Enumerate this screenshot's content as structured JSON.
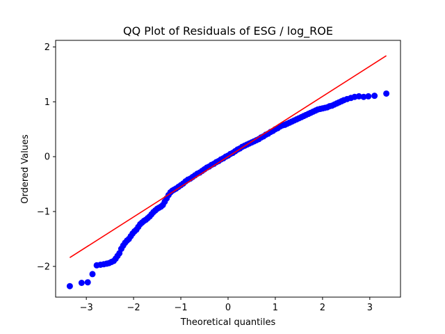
{
  "chart_data": {
    "type": "scatter",
    "title": "QQ Plot of Residuals of ESG / log_ROE",
    "xlabel": "Theoretical quantiles",
    "ylabel": "Ordered Values",
    "xlim": [
      -3.65,
      3.65
    ],
    "ylim": [
      -2.56,
      2.12
    ],
    "xticks": [
      -3,
      -2,
      -1,
      0,
      1,
      2,
      3
    ],
    "yticks": [
      -2,
      -1,
      0,
      1,
      2
    ],
    "xtick_labels": [
      "−3",
      "−2",
      "−1",
      "0",
      "1",
      "2",
      "3"
    ],
    "ytick_labels": [
      "−2",
      "−1",
      "0",
      "1",
      "2"
    ],
    "grid": false,
    "colors": {
      "points": "#0000ff",
      "fit_line": "#ff0000"
    },
    "series": [
      {
        "type": "scatter",
        "points": [
          [
            -3.35,
            -2.36
          ],
          [
            -3.1,
            -2.3
          ],
          [
            -2.97,
            -2.29
          ],
          [
            -2.87,
            -2.14
          ],
          [
            -2.78,
            -1.98
          ],
          [
            -2.7,
            -1.97
          ],
          [
            -2.63,
            -1.96
          ],
          [
            -2.57,
            -1.95
          ],
          [
            -2.52,
            -1.94
          ],
          [
            -2.47,
            -1.92
          ],
          [
            -2.42,
            -1.9
          ],
          [
            -2.38,
            -1.86
          ],
          [
            -2.34,
            -1.81
          ],
          [
            -2.3,
            -1.76
          ],
          [
            -2.26,
            -1.68
          ],
          [
            -2.22,
            -1.62
          ],
          [
            -2.18,
            -1.57
          ],
          [
            -2.14,
            -1.53
          ],
          [
            -2.1,
            -1.5
          ],
          [
            -2.06,
            -1.45
          ],
          [
            -2.02,
            -1.4
          ],
          [
            -1.98,
            -1.36
          ],
          [
            -1.94,
            -1.33
          ],
          [
            -1.9,
            -1.28
          ],
          [
            -1.86,
            -1.23
          ],
          [
            -1.82,
            -1.2
          ],
          [
            -1.78,
            -1.17
          ],
          [
            -1.74,
            -1.15
          ],
          [
            -1.7,
            -1.12
          ],
          [
            -1.66,
            -1.09
          ],
          [
            -1.62,
            -1.05
          ],
          [
            -1.58,
            -1.01
          ],
          [
            -1.54,
            -0.98
          ],
          [
            -1.5,
            -0.95
          ],
          [
            -1.46,
            -0.93
          ],
          [
            -1.42,
            -0.91
          ],
          [
            -1.38,
            -0.88
          ],
          [
            -1.34,
            -0.82
          ],
          [
            -1.3,
            -0.76
          ],
          [
            -1.26,
            -0.7
          ],
          [
            -1.22,
            -0.65
          ],
          [
            -1.18,
            -0.62
          ],
          [
            -1.14,
            -0.6
          ],
          [
            -1.1,
            -0.58
          ],
          [
            -1.05,
            -0.55
          ],
          [
            -1.0,
            -0.52
          ],
          [
            -0.95,
            -0.49
          ],
          [
            -0.9,
            -0.45
          ],
          [
            -0.85,
            -0.42
          ],
          [
            -0.8,
            -0.4
          ],
          [
            -0.75,
            -0.37
          ],
          [
            -0.7,
            -0.34
          ],
          [
            -0.65,
            -0.31
          ],
          [
            -0.6,
            -0.29
          ],
          [
            -0.55,
            -0.26
          ],
          [
            -0.5,
            -0.23
          ],
          [
            -0.45,
            -0.2
          ],
          [
            -0.4,
            -0.18
          ],
          [
            -0.35,
            -0.15
          ],
          [
            -0.3,
            -0.13
          ],
          [
            -0.25,
            -0.1
          ],
          [
            -0.2,
            -0.08
          ],
          [
            -0.15,
            -0.05
          ],
          [
            -0.1,
            -0.03
          ],
          [
            -0.05,
            0.0
          ],
          [
            0.0,
            0.02
          ],
          [
            0.05,
            0.05
          ],
          [
            0.1,
            0.07
          ],
          [
            0.15,
            0.1
          ],
          [
            0.2,
            0.13
          ],
          [
            0.25,
            0.15
          ],
          [
            0.3,
            0.18
          ],
          [
            0.35,
            0.2
          ],
          [
            0.4,
            0.22
          ],
          [
            0.45,
            0.24
          ],
          [
            0.5,
            0.26
          ],
          [
            0.55,
            0.28
          ],
          [
            0.6,
            0.3
          ],
          [
            0.65,
            0.32
          ],
          [
            0.7,
            0.35
          ],
          [
            0.75,
            0.37
          ],
          [
            0.8,
            0.4
          ],
          [
            0.85,
            0.42
          ],
          [
            0.9,
            0.45
          ],
          [
            0.95,
            0.47
          ],
          [
            1.0,
            0.5
          ],
          [
            1.05,
            0.52
          ],
          [
            1.1,
            0.55
          ],
          [
            1.15,
            0.57
          ],
          [
            1.2,
            0.58
          ],
          [
            1.25,
            0.6
          ],
          [
            1.3,
            0.62
          ],
          [
            1.35,
            0.64
          ],
          [
            1.4,
            0.66
          ],
          [
            1.45,
            0.68
          ],
          [
            1.5,
            0.7
          ],
          [
            1.55,
            0.72
          ],
          [
            1.6,
            0.74
          ],
          [
            1.65,
            0.76
          ],
          [
            1.7,
            0.78
          ],
          [
            1.75,
            0.8
          ],
          [
            1.8,
            0.82
          ],
          [
            1.85,
            0.84
          ],
          [
            1.9,
            0.86
          ],
          [
            1.95,
            0.87
          ],
          [
            2.0,
            0.88
          ],
          [
            2.05,
            0.89
          ],
          [
            2.1,
            0.9
          ],
          [
            2.15,
            0.92
          ],
          [
            2.2,
            0.93
          ],
          [
            2.25,
            0.95
          ],
          [
            2.3,
            0.97
          ],
          [
            2.35,
            0.99
          ],
          [
            2.4,
            1.01
          ],
          [
            2.45,
            1.03
          ],
          [
            2.52,
            1.05
          ],
          [
            2.6,
            1.07
          ],
          [
            2.68,
            1.09
          ],
          [
            2.77,
            1.1
          ],
          [
            2.87,
            1.09
          ],
          [
            2.97,
            1.1
          ],
          [
            3.1,
            1.11
          ],
          [
            3.35,
            1.15
          ]
        ]
      },
      {
        "type": "line",
        "x": [
          -3.35,
          3.35
        ],
        "y": [
          -1.84,
          1.84
        ]
      }
    ]
  }
}
